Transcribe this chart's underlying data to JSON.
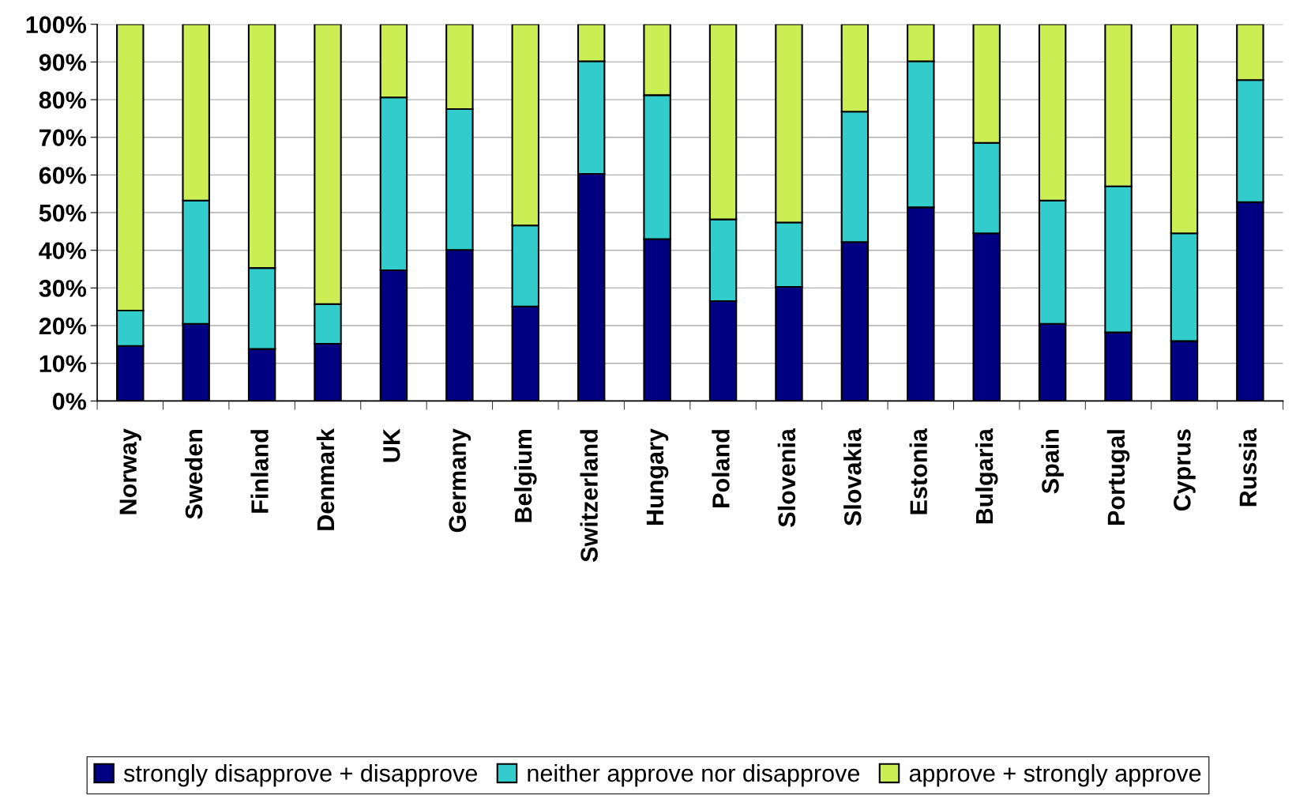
{
  "chart_data": {
    "type": "bar",
    "stacked": true,
    "categories": [
      "Norway",
      "Sweden",
      "Finland",
      "Denmark",
      "UK",
      "Germany",
      "Belgium",
      "Switzerland",
      "Hungary",
      "Poland",
      "Slovenia",
      "Slovakia",
      "Estonia",
      "Bulgaria",
      "Spain",
      "Portugal",
      "Cyprus",
      "Russia"
    ],
    "series": [
      {
        "name": "strongly disapprove + disapprove",
        "color": "#000080",
        "values": [
          14.6,
          20.5,
          13.8,
          15.2,
          34.7,
          40.1,
          25.1,
          60.3,
          43,
          26.5,
          30.3,
          42.2,
          51.4,
          44.5,
          20.5,
          18.2,
          15.9,
          52.8
        ]
      },
      {
        "name": "neither approve nor disapprove",
        "color": "#33cccc",
        "values": [
          9.4,
          32.7,
          21.5,
          10.5,
          45.9,
          37.4,
          21.5,
          29.9,
          38.2,
          21.7,
          17.1,
          34.6,
          38.8,
          24,
          32.7,
          38.8,
          28.6,
          32.4
        ]
      },
      {
        "name": "approve + strongly approve",
        "color": "#ccee55",
        "values": [
          76,
          46.8,
          64.7,
          74.3,
          19.4,
          22.5,
          53.4,
          9.8,
          18.8,
          51.8,
          52.6,
          23.2,
          9.8,
          31.5,
          46.8,
          43,
          55.5,
          14.8
        ]
      }
    ],
    "ylim": [
      0,
      100
    ],
    "yticks": [
      {
        "value": 0,
        "label": "0%"
      },
      {
        "value": 10,
        "label": "10%"
      },
      {
        "value": 20,
        "label": "20%"
      },
      {
        "value": 30,
        "label": "30%"
      },
      {
        "value": 40,
        "label": "40%"
      },
      {
        "value": 50,
        "label": "50%"
      },
      {
        "value": 60,
        "label": "60%"
      },
      {
        "value": 70,
        "label": "70%"
      },
      {
        "value": 80,
        "label": "80%"
      },
      {
        "value": 90,
        "label": "90%"
      },
      {
        "value": 100,
        "label": "100%"
      }
    ],
    "grid": "y",
    "legend": "bottom"
  }
}
